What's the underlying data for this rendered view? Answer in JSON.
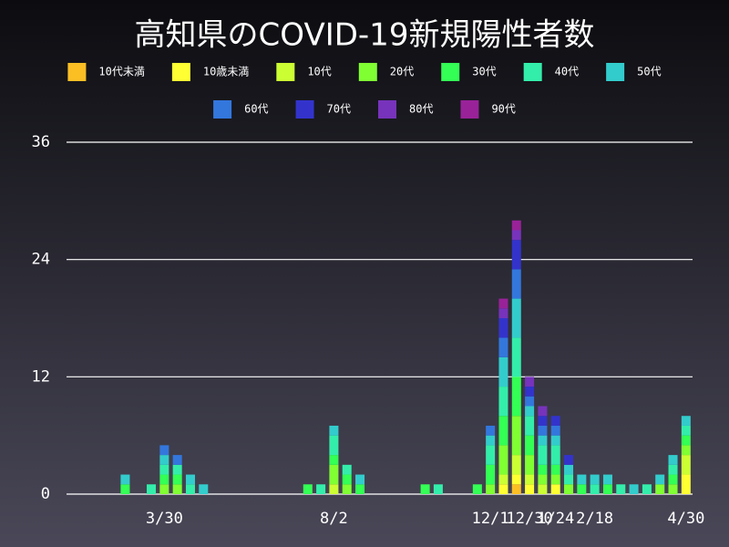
{
  "chart_data": {
    "type": "stacked-bar",
    "title": "高知県のCOVID-19新規陽性者数",
    "categories": [
      null,
      null,
      null,
      null,
      null,
      null,
      null,
      "3/30",
      null,
      null,
      null,
      null,
      null,
      null,
      null,
      null,
      null,
      null,
      null,
      null,
      "8/2",
      null,
      null,
      null,
      null,
      null,
      null,
      null,
      null,
      null,
      null,
      null,
      "12/1",
      null,
      null,
      "12/30",
      null,
      "1/24",
      null,
      null,
      "2/18",
      null,
      null,
      null,
      null,
      null,
      null,
      "4/30"
    ],
    "ylim": [
      0,
      36
    ],
    "yticks": [
      0,
      12,
      24,
      36
    ],
    "grid": true,
    "series": [
      {
        "name": "10代未満",
        "color": "#fbbf24",
        "values": [
          0,
          0,
          0,
          0,
          0,
          0,
          0,
          0,
          0,
          0,
          0,
          0,
          0,
          0,
          0,
          0,
          0,
          0,
          0,
          0,
          0,
          0,
          0,
          0,
          0,
          0,
          0,
          0,
          0,
          0,
          0,
          0,
          0,
          0,
          1,
          0,
          0,
          0,
          0,
          0,
          0,
          0,
          0,
          0,
          0,
          0,
          0,
          0
        ]
      },
      {
        "name": "10歳未満",
        "color": "#ffff33",
        "values": [
          0,
          0,
          0,
          0,
          0,
          0,
          0,
          0,
          0,
          0,
          0,
          0,
          0,
          0,
          0,
          0,
          0,
          0,
          0,
          0,
          0,
          0,
          0,
          0,
          0,
          0,
          0,
          0,
          0,
          0,
          0,
          0,
          0,
          1,
          1,
          1,
          0,
          1,
          0,
          0,
          0,
          0,
          0,
          0,
          0,
          0,
          0,
          2
        ]
      },
      {
        "name": "10代",
        "color": "#ccff33",
        "values": [
          0,
          0,
          0,
          0,
          0,
          0,
          0,
          0,
          0,
          0,
          0,
          0,
          0,
          0,
          0,
          0,
          0,
          0,
          0,
          0,
          1,
          0,
          0,
          0,
          0,
          0,
          0,
          0,
          0,
          0,
          0,
          0,
          0,
          1,
          2,
          1,
          1,
          0,
          0,
          0,
          0,
          0,
          0,
          0,
          0,
          0,
          0,
          2
        ]
      },
      {
        "name": "20代",
        "color": "#80ff33",
        "values": [
          0,
          0,
          0,
          0,
          0,
          0,
          0,
          1,
          1,
          0,
          0,
          0,
          0,
          0,
          0,
          0,
          0,
          0,
          0,
          0,
          2,
          1,
          0,
          0,
          0,
          0,
          0,
          0,
          0,
          0,
          0,
          0,
          1,
          3,
          4,
          2,
          1,
          1,
          1,
          0,
          0,
          0,
          0,
          0,
          0,
          1,
          1,
          1
        ]
      },
      {
        "name": "30代",
        "color": "#33ff55",
        "values": [
          0,
          0,
          0,
          0,
          1,
          0,
          0,
          1,
          1,
          0,
          0,
          0,
          0,
          0,
          0,
          0,
          0,
          0,
          1,
          0,
          1,
          1,
          1,
          0,
          0,
          0,
          0,
          1,
          0,
          0,
          0,
          1,
          2,
          3,
          4,
          2,
          1,
          1,
          0,
          1,
          0,
          1,
          0,
          0,
          0,
          0,
          1,
          1
        ]
      },
      {
        "name": "40代",
        "color": "#33eeaa",
        "values": [
          0,
          0,
          0,
          0,
          0,
          0,
          1,
          1,
          1,
          1,
          0,
          0,
          0,
          0,
          0,
          0,
          0,
          0,
          0,
          1,
          2,
          1,
          0,
          0,
          0,
          0,
          0,
          0,
          1,
          0,
          0,
          0,
          2,
          3,
          4,
          2,
          2,
          2,
          1,
          0,
          1,
          0,
          1,
          0,
          1,
          0,
          1,
          1
        ]
      },
      {
        "name": "50代",
        "color": "#33cccc",
        "values": [
          0,
          0,
          0,
          0,
          1,
          0,
          0,
          1,
          0,
          1,
          1,
          0,
          0,
          0,
          0,
          0,
          0,
          0,
          0,
          0,
          1,
          0,
          1,
          0,
          0,
          0,
          0,
          0,
          0,
          0,
          0,
          0,
          1,
          3,
          4,
          1,
          1,
          1,
          1,
          1,
          1,
          1,
          0,
          1,
          0,
          1,
          1,
          1
        ]
      },
      {
        "name": "60代",
        "color": "#3377dd",
        "values": [
          0,
          0,
          0,
          0,
          0,
          0,
          0,
          1,
          1,
          0,
          0,
          0,
          0,
          0,
          0,
          0,
          0,
          0,
          0,
          0,
          0,
          0,
          0,
          0,
          0,
          0,
          0,
          0,
          0,
          0,
          0,
          0,
          1,
          2,
          3,
          1,
          1,
          1,
          0,
          0,
          0,
          0,
          0,
          0,
          0,
          0,
          0,
          0
        ]
      },
      {
        "name": "70代",
        "color": "#3333cc",
        "values": [
          0,
          0,
          0,
          0,
          0,
          0,
          0,
          0,
          0,
          0,
          0,
          0,
          0,
          0,
          0,
          0,
          0,
          0,
          0,
          0,
          0,
          0,
          0,
          0,
          0,
          0,
          0,
          0,
          0,
          0,
          0,
          0,
          0,
          2,
          3,
          1,
          1,
          1,
          1,
          0,
          0,
          0,
          0,
          0,
          0,
          0,
          0,
          0
        ]
      },
      {
        "name": "80代",
        "color": "#7733bb",
        "values": [
          0,
          0,
          0,
          0,
          0,
          0,
          0,
          0,
          0,
          0,
          0,
          0,
          0,
          0,
          0,
          0,
          0,
          0,
          0,
          0,
          0,
          0,
          0,
          0,
          0,
          0,
          0,
          0,
          0,
          0,
          0,
          0,
          0,
          1,
          1,
          1,
          1,
          0,
          0,
          0,
          0,
          0,
          0,
          0,
          0,
          0,
          0,
          0
        ]
      },
      {
        "name": "90代",
        "color": "#992299",
        "values": [
          0,
          0,
          0,
          0,
          0,
          0,
          0,
          0,
          0,
          0,
          0,
          0,
          0,
          0,
          0,
          0,
          0,
          0,
          0,
          0,
          0,
          0,
          0,
          0,
          0,
          0,
          0,
          0,
          0,
          0,
          0,
          0,
          0,
          1,
          1,
          0,
          0,
          0,
          0,
          0,
          0,
          0,
          0,
          0,
          0,
          0,
          0,
          0
        ]
      }
    ]
  }
}
